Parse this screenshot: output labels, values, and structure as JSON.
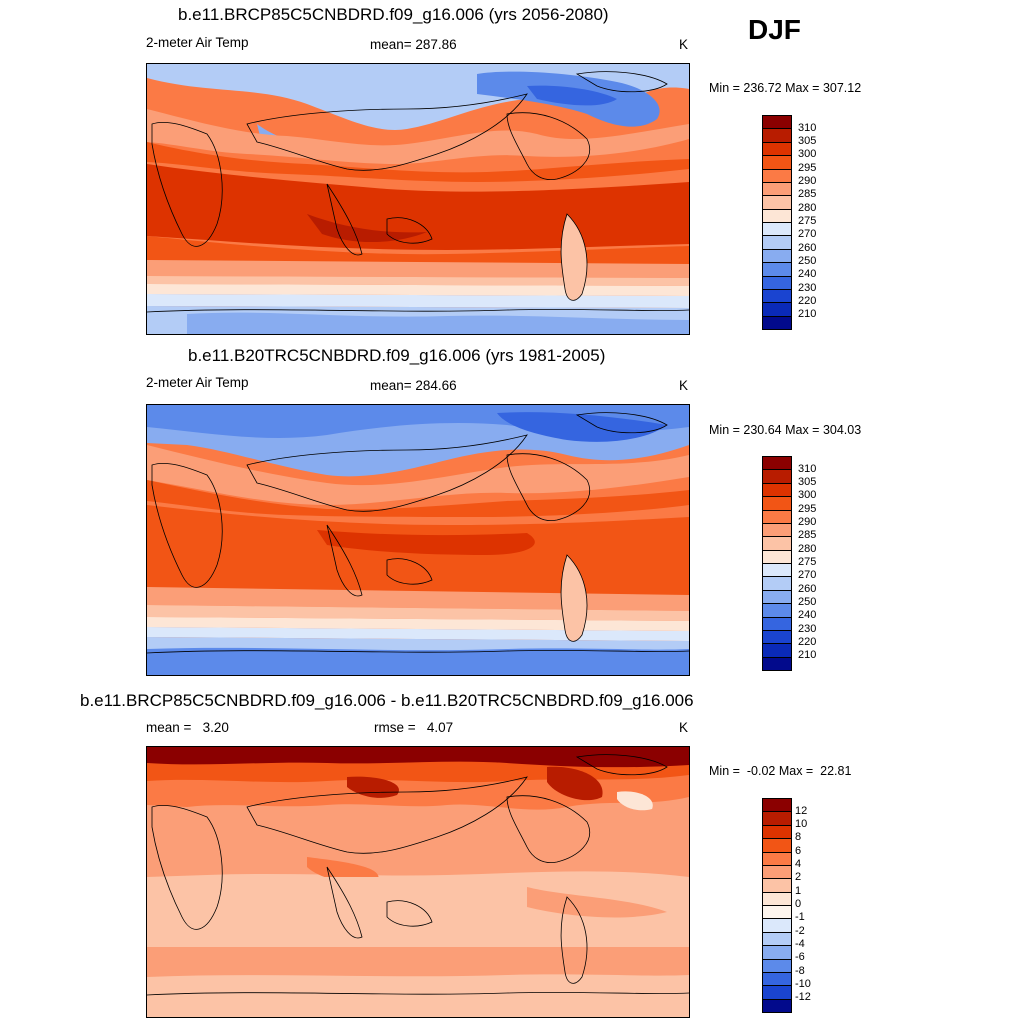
{
  "season": "DJF",
  "units": "K",
  "panels": [
    {
      "title": "b.e11.BRCP85C5CNBDRD.f09_g16.006 (yrs 2056-2080)",
      "left": "2-meter Air Temp",
      "center": "mean= 287.86",
      "right": "K",
      "minmax": "Min = 236.72 Max = 307.12",
      "colorbar": {
        "labels": [
          "310",
          "305",
          "300",
          "295",
          "290",
          "285",
          "280",
          "275",
          "270",
          "260",
          "250",
          "240",
          "230",
          "220",
          "210"
        ],
        "colors": [
          "#8b0000",
          "#b81c00",
          "#dd3300",
          "#f25515",
          "#fb7a45",
          "#fb9e77",
          "#fcc3a6",
          "#fde6d6",
          "#dbe8fb",
          "#b3ccf6",
          "#88acf0",
          "#5c8aea",
          "#3565e0",
          "#1a44d0",
          "#0a2ab8",
          "#020a8c"
        ]
      }
    },
    {
      "title": "b.e11.B20TRC5CNBDRD.f09_g16.006 (yrs 1981-2005)",
      "left": "2-meter Air Temp",
      "center": "mean= 284.66",
      "right": "K",
      "minmax": "Min = 230.64 Max = 304.03",
      "colorbar": {
        "labels": [
          "310",
          "305",
          "300",
          "295",
          "290",
          "285",
          "280",
          "275",
          "270",
          "260",
          "250",
          "240",
          "230",
          "220",
          "210"
        ],
        "colors": [
          "#8b0000",
          "#b81c00",
          "#dd3300",
          "#f25515",
          "#fb7a45",
          "#fb9e77",
          "#fcc3a6",
          "#fde6d6",
          "#dbe8fb",
          "#b3ccf6",
          "#88acf0",
          "#5c8aea",
          "#3565e0",
          "#1a44d0",
          "#0a2ab8",
          "#020a8c"
        ]
      }
    },
    {
      "title": "b.e11.BRCP85C5CNBDRD.f09_g16.006 - b.e11.B20TRC5CNBDRD.f09_g16.006",
      "left": "mean =   3.20",
      "center": "rmse =   4.07",
      "right": "K",
      "minmax": "Min =  -0.02 Max =  22.81",
      "colorbar": {
        "labels": [
          "12",
          "10",
          "8",
          "6",
          "4",
          "2",
          "1",
          "0",
          "-1",
          "-2",
          "-4",
          "-6",
          "-8",
          "-10",
          "-12"
        ],
        "colors": [
          "#8b0000",
          "#b81c00",
          "#dd3300",
          "#f25515",
          "#fb7a45",
          "#fb9e77",
          "#fcc3a6",
          "#fde6d6",
          "#fdf5ee",
          "#dbe8fb",
          "#b3ccf6",
          "#88acf0",
          "#5c8aea",
          "#3565e0",
          "#1a44d0",
          "#020a8c"
        ]
      }
    }
  ]
}
